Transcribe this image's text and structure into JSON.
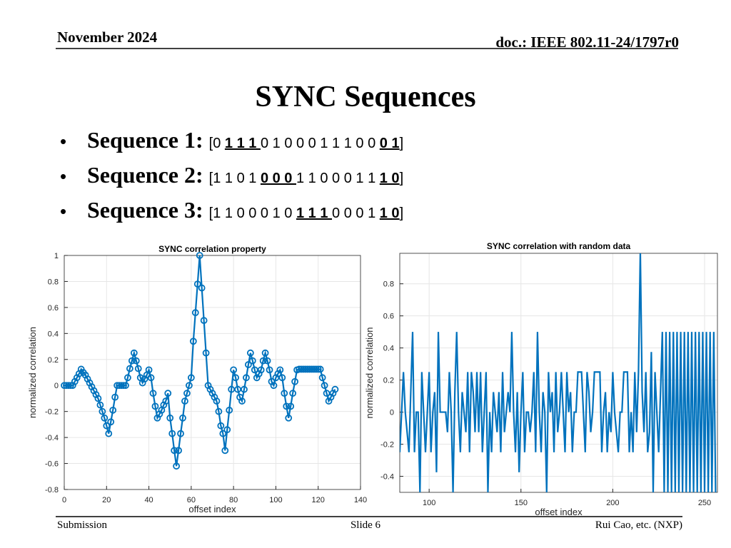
{
  "header": {
    "date": "November 2024",
    "doc": "doc.: IEEE 802.11-24/1797r0"
  },
  "title": "SYNC Sequences",
  "bullets": [
    {
      "label": "Sequence 1:",
      "parts": [
        {
          "text": "[0 ",
          "bold": false
        },
        {
          "text": "1 1 1 ",
          "bold": true
        },
        {
          "text": "0 1 0 0 0 1 1 1 0 0 ",
          "bold": false
        },
        {
          "text": "0 1",
          "bold": true
        },
        {
          "text": "]",
          "bold": false
        }
      ]
    },
    {
      "label": "Sequence 2:",
      "parts": [
        {
          "text": "[1 1 0 1 ",
          "bold": false
        },
        {
          "text": "0 0 0 ",
          "bold": true
        },
        {
          "text": "1 1 0 0 0 1 1 ",
          "bold": false
        },
        {
          "text": "1 0",
          "bold": true
        },
        {
          "text": "]",
          "bold": false
        }
      ]
    },
    {
      "label": "Sequence 3:",
      "parts": [
        {
          "text": "[1 1 0 0 0 1 0 ",
          "bold": false
        },
        {
          "text": "1 1 1 ",
          "bold": true
        },
        {
          "text": "0 0 0 1 ",
          "bold": false
        },
        {
          "text": "1 0",
          "bold": true
        },
        {
          "text": "]",
          "bold": false
        }
      ]
    }
  ],
  "footer": {
    "left": "Submission",
    "center": "Slide 6",
    "right": "Rui Cao, etc. (NXP)"
  },
  "chart_data": [
    {
      "type": "line",
      "title": "SYNC correlation property",
      "xlabel": "offset index",
      "ylabel": "normalized correlation",
      "color": "#0072bd",
      "markers": true,
      "grid": true,
      "xlim": [
        0,
        140
      ],
      "ylim": [
        -0.8,
        1
      ],
      "xticks": [
        0,
        20,
        40,
        60,
        80,
        100,
        120,
        140
      ],
      "yticks": [
        -0.8,
        -0.6,
        -0.4,
        -0.2,
        0,
        0.2,
        0.4,
        0.6,
        0.8,
        1
      ],
      "x": [
        0,
        1,
        2,
        3,
        4,
        5,
        6,
        7,
        8,
        9,
        10,
        11,
        12,
        13,
        14,
        15,
        16,
        17,
        18,
        19,
        20,
        21,
        22,
        23,
        24,
        25,
        26,
        27,
        28,
        29,
        30,
        31,
        32,
        33,
        34,
        35,
        36,
        37,
        38,
        39,
        40,
        41,
        42,
        43,
        44,
        45,
        46,
        47,
        48,
        49,
        50,
        51,
        52,
        53,
        54,
        55,
        56,
        57,
        58,
        59,
        60,
        61,
        62,
        63,
        64,
        65,
        66,
        67,
        68,
        69,
        70,
        71,
        72,
        73,
        74,
        75,
        76,
        77,
        78,
        79,
        80,
        81,
        82,
        83,
        84,
        85,
        86,
        87,
        88,
        89,
        90,
        91,
        92,
        93,
        94,
        95,
        96,
        97,
        98,
        99,
        100,
        101,
        102,
        103,
        104,
        105,
        106,
        107,
        108,
        109,
        110,
        111,
        112,
        113,
        114,
        115,
        116,
        117,
        118,
        119,
        120,
        121,
        122,
        123,
        124,
        125,
        126,
        127,
        128
      ],
      "values": [
        0,
        0,
        0,
        0,
        0,
        0.03,
        0.06,
        0.09,
        0.125,
        0.1,
        0.08,
        0.05,
        0.02,
        -0.01,
        -0.04,
        -0.07,
        -0.1,
        -0.15,
        -0.2,
        -0.25,
        -0.31,
        -0.37,
        -0.28,
        -0.19,
        -0.09,
        0,
        0,
        0,
        0,
        0,
        0.06,
        0.13,
        0.19,
        0.25,
        0.19,
        0.13,
        0.06,
        0.02,
        0.05,
        0.08,
        0.12,
        0.06,
        -0.06,
        -0.16,
        -0.25,
        -0.22,
        -0.19,
        -0.15,
        -0.12,
        -0.06,
        -0.25,
        -0.37,
        -0.5,
        -0.62,
        -0.5,
        -0.37,
        -0.25,
        -0.12,
        -0.06,
        0,
        0.06,
        0.34,
        0.56,
        0.78,
        1,
        0.75,
        0.5,
        0.25,
        0,
        -0.03,
        -0.06,
        -0.09,
        -0.12,
        -0.2,
        -0.31,
        -0.37,
        -0.5,
        -0.34,
        -0.19,
        -0.03,
        0.12,
        0.06,
        -0.03,
        -0.09,
        -0.12,
        -0.03,
        0.06,
        0.16,
        0.25,
        0.19,
        0.12,
        0.06,
        0.09,
        0.12,
        0.19,
        0.25,
        0.19,
        0.12,
        0.03,
        0,
        0.06,
        0.09,
        0.12,
        0.06,
        -0.06,
        -0.16,
        -0.25,
        -0.16,
        -0.06,
        0.03,
        0.12,
        0.125,
        0.125,
        0.125,
        0.125,
        0.125,
        0.125,
        0.125,
        0.125,
        0.125,
        0.125,
        0.125,
        0.06,
        0,
        -0.06,
        -0.12,
        -0.09,
        -0.06,
        -0.03
      ]
    },
    {
      "type": "line",
      "title": "SYNC correlation with random data",
      "xlabel": "offset index",
      "ylabel": "normalized correlation",
      "color": "#0072bd",
      "markers": false,
      "grid": true,
      "xlim": [
        84,
        257
      ],
      "ylim": [
        -0.5,
        0.99
      ],
      "xticks": [
        100,
        150,
        200,
        250
      ],
      "yticks": [
        -0.4,
        -0.2,
        0,
        0.2,
        0.4,
        0.6,
        0.8
      ],
      "x": [
        84,
        85,
        86,
        87,
        88,
        89,
        90,
        91,
        92,
        93,
        94,
        95,
        96,
        97,
        98,
        99,
        100,
        101,
        102,
        103,
        104,
        105,
        106,
        107,
        108,
        109,
        110,
        111,
        112,
        113,
        114,
        115,
        116,
        117,
        118,
        119,
        120,
        121,
        122,
        123,
        124,
        125,
        126,
        127,
        128,
        129,
        130,
        131,
        132,
        133,
        134,
        135,
        136,
        137,
        138,
        139,
        140,
        141,
        142,
        143,
        144,
        145,
        146,
        147,
        148,
        149,
        150,
        151,
        152,
        153,
        154,
        155,
        156,
        157,
        158,
        159,
        160,
        161,
        162,
        163,
        164,
        165,
        166,
        167,
        168,
        169,
        170,
        171,
        172,
        173,
        174,
        175,
        176,
        177,
        178,
        179,
        180,
        181,
        182,
        183,
        184,
        185,
        186,
        187,
        188,
        189,
        190,
        191,
        192,
        193,
        194,
        195,
        196,
        197,
        198,
        199,
        200,
        201,
        202,
        203,
        204,
        205,
        206,
        207,
        208,
        209,
        210,
        211,
        212,
        213,
        214,
        215,
        216,
        217,
        218,
        219,
        220,
        221,
        222,
        223,
        224,
        225,
        226,
        227,
        228,
        229,
        230,
        231,
        232,
        233,
        234,
        235,
        236,
        237,
        238,
        239,
        240,
        241,
        242,
        243,
        244,
        245,
        246,
        247,
        248,
        249,
        250,
        251,
        252,
        253,
        254,
        255,
        256
      ],
      "values": [
        -0.25,
        0,
        0.25,
        0,
        -0.125,
        -0.25,
        0.125,
        0.5,
        -0.25,
        0,
        0,
        -0.5,
        0.25,
        0,
        -0.25,
        0,
        0.25,
        -0.25,
        0,
        0.125,
        -0.375,
        0.5,
        0,
        0,
        0,
        0,
        -0.125,
        0.25,
        0,
        -0.5,
        0.125,
        0.5,
        0,
        -0.25,
        0.125,
        0,
        -0.125,
        0.25,
        -0.25,
        0.25,
        0.125,
        -0.125,
        0.25,
        -0.125,
        0.25,
        -0.25,
        0,
        0.25,
        -0.5,
        0,
        -0.25,
        0.125,
        0,
        -0.125,
        0.125,
        -0.25,
        0.25,
        -0.125,
        0,
        0.125,
        0,
        0.5,
        0,
        -0.25,
        0.125,
        -0.375,
        0,
        0.25,
        -0.25,
        0,
        0,
        -0.125,
        0,
        0.25,
        -0.25,
        0.5,
        0,
        -0.25,
        0.125,
        0,
        -0.5,
        0.25,
        0,
        0.125,
        -0.25,
        0.25,
        -0.125,
        0,
        0.25,
        0,
        -0.25,
        0.25,
        0,
        0.125,
        -0.25,
        0,
        0,
        0.25,
        0.25,
        0.25,
        0,
        -0.25,
        0.25,
        0.125,
        -0.125,
        0,
        0.25,
        0.25,
        0.25,
        0.25,
        -0.25,
        0,
        0.125,
        -0.25,
        0,
        -0.125,
        0.25,
        0,
        -0.125,
        -0.25,
        0,
        0,
        0.25,
        0.25,
        0.25,
        -0.25,
        0,
        -0.25,
        0.25,
        -0.125,
        0.25,
        1,
        0.125,
        -0.125,
        0.25,
        -0.25,
        -0.125,
        0.375,
        -0.5,
        0.25,
        0,
        -0.25,
        0.125,
        0.5,
        -0.5,
        0.5,
        -0.5,
        0.5,
        -0.5,
        0.5,
        -0.5,
        0.5,
        -0.5,
        0.5,
        -0.5,
        0.5,
        -0.5,
        0.5,
        -0.5,
        0.5,
        -0.5,
        0.5,
        -0.5,
        0.5,
        -0.5,
        0.5,
        -0.5,
        0.5,
        -0.5,
        0.5,
        -0.5,
        0.5,
        -0.5
      ]
    }
  ]
}
